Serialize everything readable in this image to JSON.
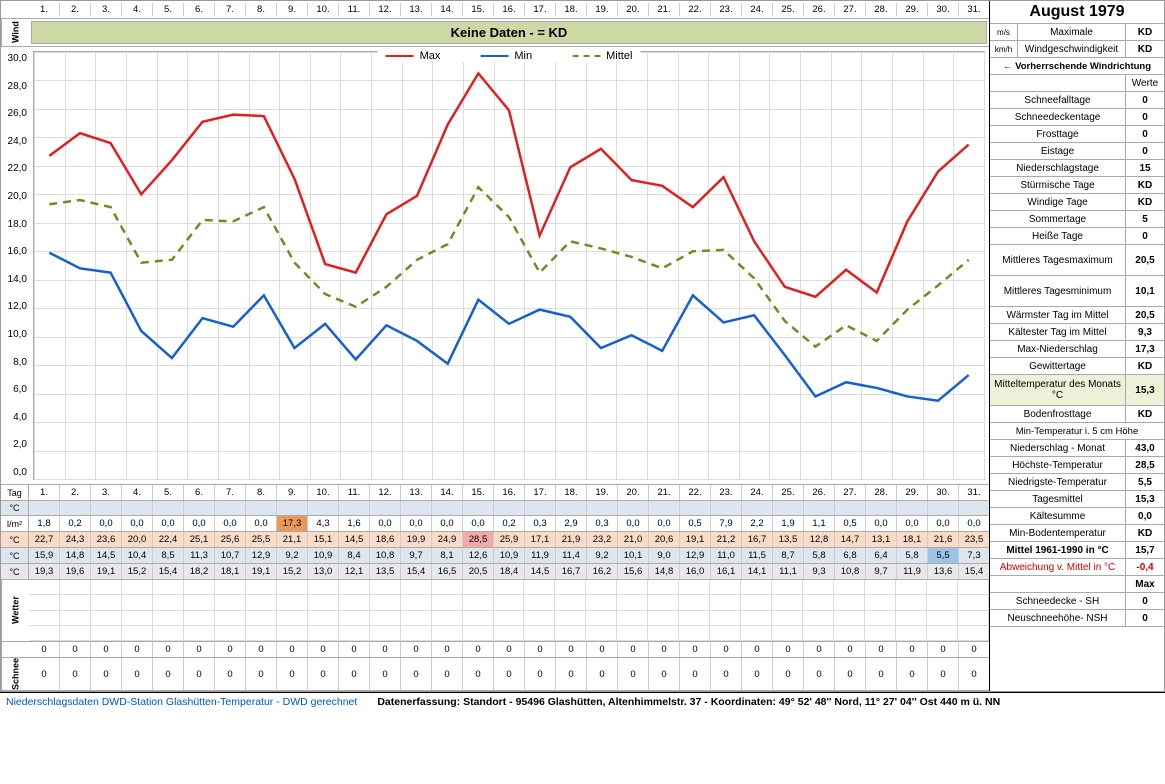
{
  "title": "August 1979",
  "days": [
    "1.",
    "2.",
    "3.",
    "4.",
    "5.",
    "6.",
    "7.",
    "8.",
    "9.",
    "10.",
    "11.",
    "12.",
    "13.",
    "14.",
    "15.",
    "16.",
    "17.",
    "18.",
    "19.",
    "20.",
    "21.",
    "22.",
    "23.",
    "24.",
    "25.",
    "26.",
    "27.",
    "28.",
    "29.",
    "30.",
    "31."
  ],
  "wind_label": "Wind",
  "wind_band_text": "Keine Daten -  = KD",
  "chart": {
    "type": "line",
    "ymin": 0.0,
    "ymax": 30.0,
    "ystep": 2.0,
    "yticks": [
      "30,0",
      "28,0",
      "26,0",
      "24,0",
      "22,0",
      "20,0",
      "18,0",
      "16,0",
      "14,0",
      "12,0",
      "10,0",
      "8,0",
      "6,0",
      "4,0",
      "2,0",
      "0,0"
    ],
    "legend": [
      {
        "label": "Max",
        "color": "#e02020",
        "dash": "solid",
        "width": 2.5
      },
      {
        "label": "Min",
        "color": "#1560d0",
        "dash": "solid",
        "width": 2.5
      },
      {
        "label": "Mittel",
        "color": "#6b8e23",
        "dash": "dashed",
        "width": 2.5
      }
    ],
    "series_max": [
      22.7,
      24.3,
      23.6,
      20.0,
      22.4,
      25.1,
      25.6,
      25.5,
      21.1,
      15.1,
      14.5,
      18.6,
      19.9,
      24.9,
      28.5,
      25.9,
      17.1,
      21.9,
      23.2,
      21.0,
      20.6,
      19.1,
      21.2,
      16.7,
      13.5,
      12.8,
      14.7,
      13.1,
      18.1,
      21.6,
      23.5
    ],
    "series_min": [
      15.9,
      14.8,
      14.5,
      10.4,
      8.5,
      11.3,
      10.7,
      12.9,
      9.2,
      10.9,
      8.4,
      10.8,
      9.7,
      8.1,
      12.6,
      10.9,
      11.9,
      11.4,
      9.2,
      10.1,
      9.0,
      12.9,
      11.0,
      11.5,
      8.7,
      5.8,
      6.8,
      6.4,
      5.8,
      5.5,
      7.3
    ],
    "series_mittel": [
      19.3,
      19.6,
      19.1,
      15.2,
      15.4,
      18.2,
      18.1,
      19.1,
      15.2,
      13.0,
      12.1,
      13.5,
      15.4,
      16.5,
      20.5,
      18.4,
      14.5,
      16.7,
      16.2,
      15.6,
      14.8,
      16.0,
      16.1,
      14.1,
      11.1,
      9.3,
      10.8,
      9.7,
      11.9,
      13.6,
      15.4
    ],
    "grid_color": "#dddddd",
    "background": "#ffffff"
  },
  "data_rows": {
    "tag_label": "Tag",
    "degC_label": "°C",
    "min5cm_label": "Min-Temperatur i. 5 cm Höhe",
    "precip_unit": "l/m²",
    "precip": [
      "1,8",
      "0,2",
      "0,0",
      "0,0",
      "0,0",
      "0,0",
      "0,0",
      "0,0",
      "17,3",
      "4,3",
      "1,6",
      "0,0",
      "0,0",
      "0,0",
      "0,0",
      "0,2",
      "0,3",
      "2,9",
      "0,3",
      "0,0",
      "0,0",
      "0,5",
      "7,9",
      "2,2",
      "1,9",
      "1,1",
      "0,5",
      "0,0",
      "0,0",
      "0,0",
      "0,0"
    ],
    "max_t": [
      "22,7",
      "24,3",
      "23,6",
      "20,0",
      "22,4",
      "25,1",
      "25,6",
      "25,5",
      "21,1",
      "15,1",
      "14,5",
      "18,6",
      "19,9",
      "24,9",
      "28,5",
      "25,9",
      "17,1",
      "21,9",
      "23,2",
      "21,0",
      "20,6",
      "19,1",
      "21,2",
      "16,7",
      "13,5",
      "12,8",
      "14,7",
      "13,1",
      "18,1",
      "21,6",
      "23,5"
    ],
    "min_t": [
      "15,9",
      "14,8",
      "14,5",
      "10,4",
      "8,5",
      "11,3",
      "10,7",
      "12,9",
      "9,2",
      "10,9",
      "8,4",
      "10,8",
      "9,7",
      "8,1",
      "12,6",
      "10,9",
      "11,9",
      "11,4",
      "9,2",
      "10,1",
      "9,0",
      "12,9",
      "11,0",
      "11,5",
      "8,7",
      "5,8",
      "6,8",
      "6,4",
      "5,8",
      "5,5",
      "7,3"
    ],
    "mittel_t": [
      "19,3",
      "19,6",
      "19,1",
      "15,2",
      "15,4",
      "18,2",
      "18,1",
      "19,1",
      "15,2",
      "13,0",
      "12,1",
      "13,5",
      "15,4",
      "16,5",
      "20,5",
      "18,4",
      "14,5",
      "16,7",
      "16,2",
      "15,6",
      "14,8",
      "16,0",
      "16,1",
      "14,1",
      "11,1",
      "9,3",
      "10,8",
      "9,7",
      "11,9",
      "13,6",
      "15,4"
    ],
    "max_precip_index": 8,
    "max_temp_index": 14,
    "min_temp_index": 29
  },
  "snow_rows": {
    "sh": [
      "0",
      "0",
      "0",
      "0",
      "0",
      "0",
      "0",
      "0",
      "0",
      "0",
      "0",
      "0",
      "0",
      "0",
      "0",
      "0",
      "0",
      "0",
      "0",
      "0",
      "0",
      "0",
      "0",
      "0",
      "0",
      "0",
      "0",
      "0",
      "0",
      "0",
      "0"
    ],
    "nsh": [
      "0",
      "0",
      "0",
      "0",
      "0",
      "0",
      "0",
      "0",
      "0",
      "0",
      "0",
      "0",
      "0",
      "0",
      "0",
      "0",
      "0",
      "0",
      "0",
      "0",
      "0",
      "0",
      "0",
      "0",
      "0",
      "0",
      "0",
      "0",
      "0",
      "0",
      "0"
    ],
    "label": "Schnee"
  },
  "side": {
    "wind_rows": [
      {
        "unit": "m/s",
        "label": "Maximale",
        "val": "KD"
      },
      {
        "unit": "km/h",
        "label": "Windgeschwindigkeit",
        "val": "KD"
      }
    ],
    "wind_dir": "← Vorherrschende Windrichtung",
    "werte": "Werte",
    "stats": [
      {
        "label": "Schneefalltage",
        "val": "0"
      },
      {
        "label": "Schneedeckentage",
        "val": "0"
      },
      {
        "label": "Frosttage",
        "val": "0"
      },
      {
        "label": "Eistage",
        "val": "0"
      },
      {
        "label": "Niederschlagstage",
        "val": "15"
      },
      {
        "label": "Stürmische Tage",
        "val": "KD"
      },
      {
        "label": "Windige Tage",
        "val": "KD"
      },
      {
        "label": "Sommertage",
        "val": "5"
      },
      {
        "label": "Heiße Tage",
        "val": "0"
      }
    ],
    "tall_stats": [
      {
        "label": "Mittleres Tagesmaximum",
        "val": "20,5"
      },
      {
        "label": "Mittleres Tagesminimum",
        "val": "10,1"
      }
    ],
    "more": [
      {
        "label": "Wärmster Tag im Mittel",
        "val": "20,5"
      },
      {
        "label": "Kältester Tag im Mittel",
        "val": "9,3"
      },
      {
        "label": "Max-Niederschlag",
        "val": "17,3"
      },
      {
        "label": "Gewittertage",
        "val": "KD"
      }
    ],
    "monthmean": {
      "label": "Mitteltemperatur des Monats °C",
      "val": "15,3",
      "bg": "#eef0d8"
    },
    "bodenfrost": {
      "label": "Bodenfrosttage",
      "val": "KD"
    },
    "row_labels": [
      {
        "label": "Niederschlag - Monat",
        "val": "43,0"
      },
      {
        "label": "Höchste-Temperatur",
        "val": "28,5"
      },
      {
        "label": "Niedrigste-Temperatur",
        "val": "5,5"
      },
      {
        "label": "Tagesmittel",
        "val": "15,3"
      },
      {
        "label": "Kältesumme",
        "val": "0,0"
      },
      {
        "label": "Min-Bodentemperatur",
        "val": "KD"
      },
      {
        "label": "Mittel 1961-1990 in °C",
        "val": "15,7",
        "bold": true
      },
      {
        "label": "Abweichung v. Mittel in °C",
        "val": "-0,4",
        "color": "#d00000"
      }
    ],
    "max_label": "Max",
    "snow": [
      {
        "label": "Schneedecke -   SH",
        "val": "0"
      },
      {
        "label": "Neuschneehöhe- NSH",
        "val": "0"
      }
    ]
  },
  "wetter_label": "Wetter",
  "footer": {
    "note1": "Niederschlagsdaten DWD-Station Glashütten-Temperatur -  DWD gerechnet",
    "note2": "Datenerfassung: Standort -  95496 Glashütten, Altenhimmelstr. 37 - Koordinaten:  49° 52' 48'' Nord,   11° 27' 04'' Ost   440 m ü. NN"
  },
  "colors": {
    "wind_band": "#cdd9a4",
    "row_blue": "#dde6ef",
    "row_orange": "#f8dcc8",
    "row_gray": "#e8e8e8",
    "highlight_precip": "#e89858",
    "highlight_maxt": "#f4a8a8",
    "highlight_mint": "#9cc4e8"
  }
}
